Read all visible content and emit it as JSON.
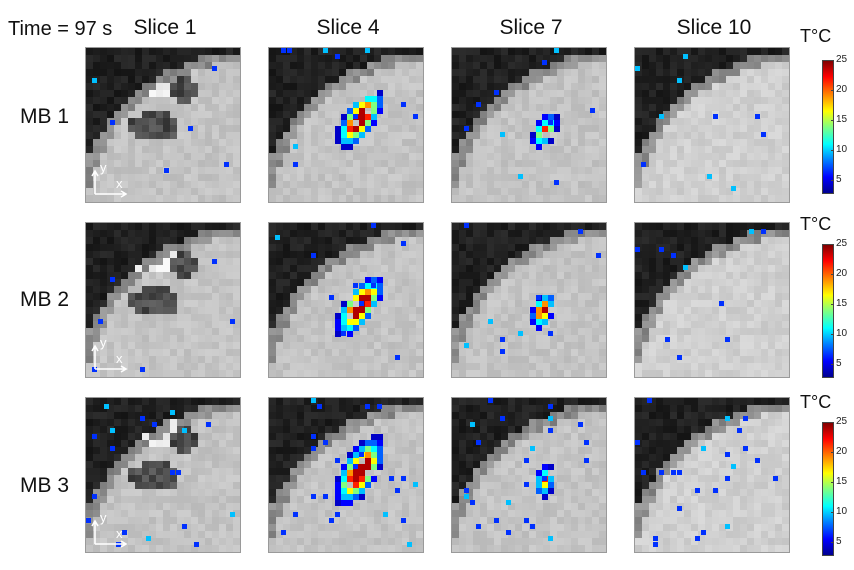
{
  "time_label": "Time = 97 s",
  "columns": [
    "Slice 1",
    "Slice 4",
    "Slice 7",
    "Slice 10"
  ],
  "rows": [
    "MB 1",
    "MB 2",
    "MB 3"
  ],
  "axis": {
    "y": "y",
    "x": "x"
  },
  "colorbar": {
    "title": "T°C",
    "ticks": [
      "25",
      "20",
      "15",
      "10",
      "5"
    ],
    "range": [
      3,
      25
    ],
    "colors": [
      "#00008f",
      "#0000ff",
      "#0080ff",
      "#00ffff",
      "#80ff80",
      "#ffff00",
      "#ff8000",
      "#ff0000",
      "#800000"
    ]
  }
}
